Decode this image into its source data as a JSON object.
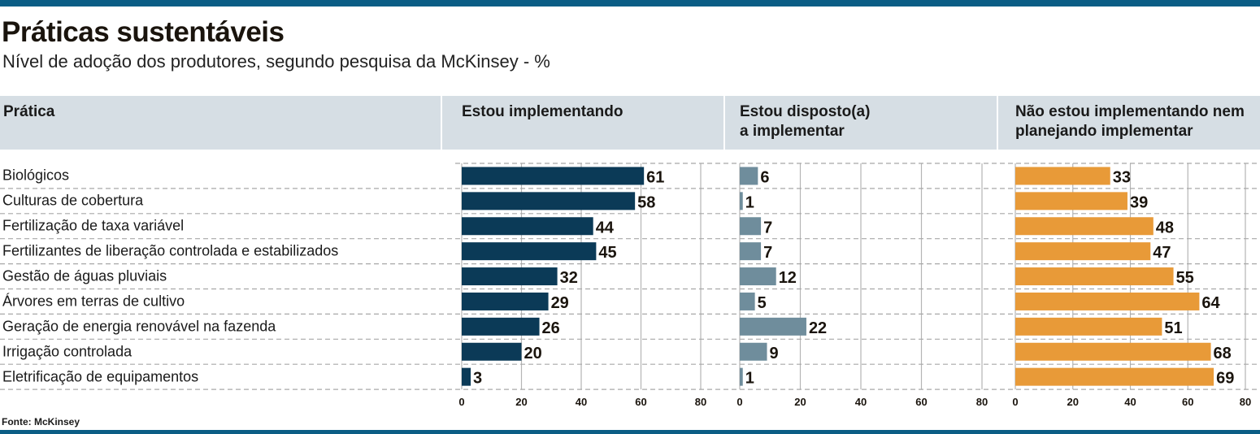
{
  "title": "Práticas sustentáveis",
  "subtitle": "Nível de adoção dos produtores, segundo pesquisa da McKinsey - %",
  "source": "Fonte: McKinsey",
  "chart_data": {
    "type": "bar",
    "orientation": "horizontal",
    "row_header": "Prática",
    "categories": [
      "Biológicos",
      "Culturas de cobertura",
      "Fertilização de taxa variável",
      "Fertilizantes de liberação controlada e estabilizados",
      "Gestão de águas pluviais",
      "Árvores em terras de cultivo",
      "Geração de energia renovável na fazenda",
      "Irrigação controlada",
      "Eletrificação de equipamentos"
    ],
    "series": [
      {
        "name": "Estou implementando",
        "name_lines": [
          "Estou implementando"
        ],
        "color": "#0b3a57",
        "values": [
          61,
          58,
          44,
          45,
          32,
          29,
          26,
          20,
          3
        ]
      },
      {
        "name": "Estou disposto(a) a implementar",
        "name_lines": [
          "Estou disposto(a)",
          "a implementar"
        ],
        "color": "#6f8d9c",
        "values": [
          6,
          1,
          7,
          7,
          12,
          5,
          22,
          9,
          1
        ]
      },
      {
        "name": "Não estou implementando nem planejando implementar",
        "name_lines": [
          "Não estou implementando nem",
          "planejando implementar"
        ],
        "color": "#e89a38",
        "values": [
          33,
          39,
          48,
          47,
          55,
          64,
          51,
          68,
          69
        ]
      }
    ],
    "xlim": [
      0,
      80
    ],
    "xticks": [
      "0",
      "20",
      "40",
      "60",
      "80"
    ],
    "grid": true
  }
}
